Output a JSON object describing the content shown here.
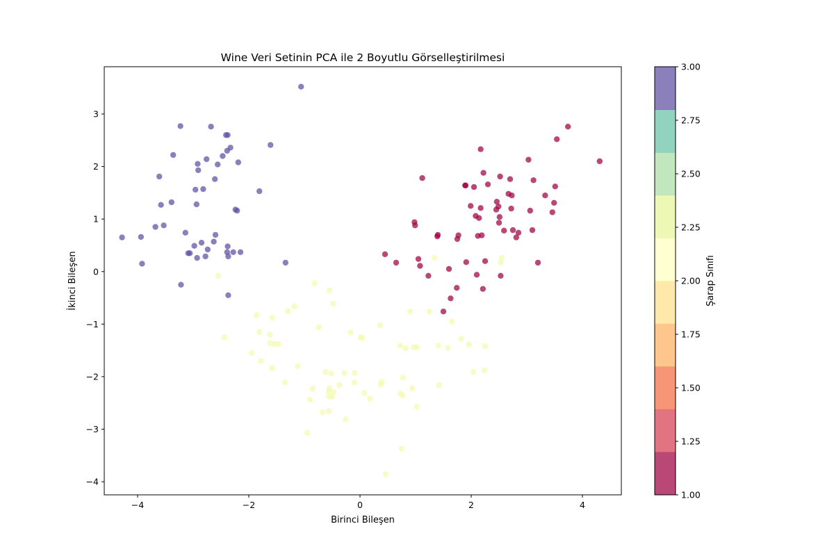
{
  "chart_data": {
    "type": "scatter",
    "title": "Wine Veri Setinin PCA ile 2 Boyutlu Görselleştirilmesi",
    "xlabel": "Birinci Bileşen",
    "ylabel": "İkinci Bileşen",
    "xlim": [
      -4.6,
      4.7
    ],
    "ylim": [
      -4.25,
      3.9
    ],
    "xticks": [
      -4,
      -2,
      0,
      2,
      4
    ],
    "yticks": [
      -4,
      -3,
      -2,
      -1,
      0,
      1,
      2,
      3
    ],
    "grid": false,
    "colorbar": {
      "label": "Şarap Sınıfı",
      "range": [
        1.0,
        3.0
      ],
      "ticks": [
        1.0,
        1.25,
        1.5,
        1.75,
        2.0,
        2.25,
        2.5,
        2.75,
        3.0
      ],
      "tick_labels": [
        "1.00",
        "1.25",
        "1.50",
        "1.75",
        "2.00",
        "2.25",
        "2.50",
        "2.75",
        "3.00"
      ],
      "colormap": "Spectral",
      "bands": [
        "#9e0142",
        "#d53e4f",
        "#f46d43",
        "#fdae61",
        "#fee08b",
        "#ffffbf",
        "#e6f598",
        "#abdda4",
        "#66c2a5",
        "#5e4fa2"
      ]
    },
    "series": [
      {
        "class": 1,
        "color": "#9e0142",
        "points": [
          [
            0.45,
            0.33
          ],
          [
            0.65,
            0.17
          ],
          [
            0.98,
            0.94
          ],
          [
            0.99,
            0.88
          ],
          [
            1.05,
            0.24
          ],
          [
            1.08,
            0.11
          ],
          [
            1.12,
            1.78
          ],
          [
            1.23,
            -0.08
          ],
          [
            1.39,
            0.67
          ],
          [
            1.4,
            0.7
          ],
          [
            1.5,
            -0.76
          ],
          [
            1.6,
            0.05
          ],
          [
            1.63,
            -0.51
          ],
          [
            1.74,
            -0.31
          ],
          [
            1.75,
            0.62
          ],
          [
            1.77,
            0.69
          ],
          [
            1.89,
            1.64
          ],
          [
            1.9,
            1.64
          ],
          [
            1.91,
            0.18
          ],
          [
            1.99,
            1.25
          ],
          [
            2.05,
            1.61
          ],
          [
            2.08,
            1.06
          ],
          [
            2.1,
            -0.06
          ],
          [
            2.12,
            0.68
          ],
          [
            2.14,
            1.02
          ],
          [
            2.17,
            1.21
          ],
          [
            2.17,
            2.33
          ],
          [
            2.19,
            0.69
          ],
          [
            2.21,
            -0.33
          ],
          [
            2.22,
            1.88
          ],
          [
            2.25,
            0.2
          ],
          [
            2.3,
            1.66
          ],
          [
            2.45,
            1.18
          ],
          [
            2.46,
            1.33
          ],
          [
            2.49,
            1.24
          ],
          [
            2.5,
            0.93
          ],
          [
            2.51,
            1.04
          ],
          [
            2.52,
            1.81
          ],
          [
            2.53,
            -0.08
          ],
          [
            2.59,
            0.78
          ],
          [
            2.67,
            1.48
          ],
          [
            2.7,
            1.76
          ],
          [
            2.72,
            1.2
          ],
          [
            2.73,
            1.45
          ],
          [
            2.75,
            0.79
          ],
          [
            2.81,
            0.65
          ],
          [
            2.85,
            0.74
          ],
          [
            3.03,
            2.13
          ],
          [
            3.06,
            1.16
          ],
          [
            3.1,
            0.79
          ],
          [
            3.12,
            1.74
          ],
          [
            3.2,
            0.17
          ],
          [
            3.33,
            1.45
          ],
          [
            3.46,
            1.13
          ],
          [
            3.49,
            1.31
          ],
          [
            3.51,
            1.62
          ],
          [
            3.54,
            2.52
          ],
          [
            3.74,
            2.76
          ],
          [
            4.31,
            2.1
          ]
        ]
      },
      {
        "class": 2,
        "color": "#f4faad",
        "points": [
          [
            -2.55,
            -0.08
          ],
          [
            -2.44,
            -1.25
          ],
          [
            -1.95,
            -1.55
          ],
          [
            -1.86,
            -0.83
          ],
          [
            -1.81,
            -1.15
          ],
          [
            -1.78,
            -1.7
          ],
          [
            -1.62,
            -1.2
          ],
          [
            -1.62,
            -1.36
          ],
          [
            -1.58,
            -0.88
          ],
          [
            -1.58,
            -1.84
          ],
          [
            -1.54,
            -1.38
          ],
          [
            -1.47,
            -1.38
          ],
          [
            -1.35,
            -2.11
          ],
          [
            -1.3,
            -0.75
          ],
          [
            -1.18,
            -0.66
          ],
          [
            -1.12,
            -1.8
          ],
          [
            -0.95,
            -3.07
          ],
          [
            -0.9,
            -2.44
          ],
          [
            -0.85,
            -2.23
          ],
          [
            -0.82,
            -0.22
          ],
          [
            -0.74,
            -1.06
          ],
          [
            -0.67,
            -2.68
          ],
          [
            -0.62,
            -1.91
          ],
          [
            -0.56,
            -2.28
          ],
          [
            -0.56,
            -2.38
          ],
          [
            -0.56,
            -2.66
          ],
          [
            -0.55,
            -2.22
          ],
          [
            -0.55,
            -0.36
          ],
          [
            -0.52,
            -1.94
          ],
          [
            -0.5,
            -2.38
          ],
          [
            -0.48,
            -0.61
          ],
          [
            -0.47,
            -2.3
          ],
          [
            -0.37,
            -2.16
          ],
          [
            -0.28,
            -1.93
          ],
          [
            -0.26,
            -2.81
          ],
          [
            -0.17,
            -1.16
          ],
          [
            -0.1,
            -1.93
          ],
          [
            -0.1,
            -2.11
          ],
          [
            0.01,
            -1.25
          ],
          [
            0.04,
            -1.26
          ],
          [
            0.08,
            -2.31
          ],
          [
            0.18,
            -2.42
          ],
          [
            0.36,
            -1.02
          ],
          [
            0.37,
            -2.15
          ],
          [
            0.39,
            -2.1
          ],
          [
            0.46,
            -3.86
          ],
          [
            0.72,
            -1.41
          ],
          [
            0.73,
            -2.32
          ],
          [
            0.75,
            -3.37
          ],
          [
            0.77,
            -2.02
          ],
          [
            0.77,
            -2.36
          ],
          [
            0.82,
            -1.46
          ],
          [
            0.9,
            -0.76
          ],
          [
            0.94,
            -2.22
          ],
          [
            0.97,
            -1.44
          ],
          [
            1.02,
            -1.44
          ],
          [
            1.02,
            -2.57
          ],
          [
            1.25,
            -0.76
          ],
          [
            1.34,
            0.26
          ],
          [
            1.41,
            -1.41
          ],
          [
            1.42,
            -2.16
          ],
          [
            1.58,
            -1.45
          ],
          [
            1.65,
            -0.95
          ],
          [
            1.82,
            -1.28
          ],
          [
            1.96,
            -1.39
          ],
          [
            2.04,
            -1.91
          ],
          [
            2.24,
            -1.88
          ],
          [
            2.25,
            -1.42
          ],
          [
            2.53,
            0.17
          ],
          [
            2.55,
            0.26
          ]
        ]
      },
      {
        "class": 3,
        "color": "#5e4fa2",
        "points": [
          [
            -4.28,
            0.65
          ],
          [
            -3.94,
            0.66
          ],
          [
            -3.92,
            0.15
          ],
          [
            -3.68,
            0.85
          ],
          [
            -3.61,
            1.81
          ],
          [
            -3.58,
            1.27
          ],
          [
            -3.53,
            0.88
          ],
          [
            -3.39,
            1.32
          ],
          [
            -3.36,
            2.22
          ],
          [
            -3.23,
            2.77
          ],
          [
            -3.22,
            -0.25
          ],
          [
            -3.14,
            0.74
          ],
          [
            -3.09,
            0.35
          ],
          [
            -3.06,
            0.35
          ],
          [
            -2.98,
            0.49
          ],
          [
            -2.96,
            1.56
          ],
          [
            -2.94,
            1.28
          ],
          [
            -2.93,
            0.26
          ],
          [
            -2.92,
            2.05
          ],
          [
            -2.91,
            1.93
          ],
          [
            -2.85,
            0.55
          ],
          [
            -2.82,
            1.57
          ],
          [
            -2.78,
            0.29
          ],
          [
            -2.76,
            2.14
          ],
          [
            -2.74,
            0.42
          ],
          [
            -2.68,
            2.76
          ],
          [
            -2.63,
            0.57
          ],
          [
            -2.61,
            1.76
          ],
          [
            -2.6,
            0.7
          ],
          [
            -2.56,
            2.04
          ],
          [
            -2.47,
            2.2
          ],
          [
            -2.41,
            2.6
          ],
          [
            -2.39,
            2.3
          ],
          [
            -2.39,
            0.37
          ],
          [
            -2.38,
            2.6
          ],
          [
            -2.38,
            0.48
          ],
          [
            -2.37,
            0.29
          ],
          [
            -2.37,
            -0.45
          ],
          [
            -2.33,
            2.36
          ],
          [
            -2.28,
            0.37
          ],
          [
            -2.24,
            1.18
          ],
          [
            -2.21,
            1.16
          ],
          [
            -2.19,
            2.08
          ],
          [
            -2.15,
            0.37
          ],
          [
            -1.81,
            1.53
          ],
          [
            -1.61,
            2.41
          ],
          [
            -1.34,
            0.17
          ],
          [
            -1.06,
            3.52
          ]
        ]
      }
    ]
  }
}
